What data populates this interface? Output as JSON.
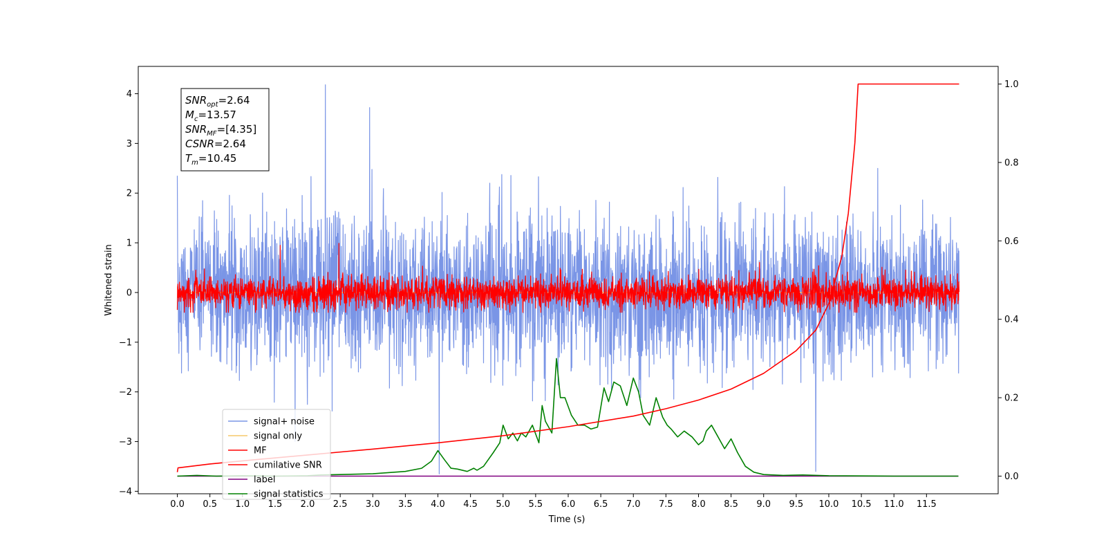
{
  "chart_data": {
    "type": "line",
    "xlabel": "Time (s)",
    "ylabel": "Whitened strain",
    "ylabel_right": "",
    "xlim": [
      -0.6,
      12.6
    ],
    "ylim": [
      -4.05,
      4.55
    ],
    "ylim_right": [
      -0.045,
      1.045
    ],
    "xticks": [
      0.0,
      0.5,
      1.0,
      1.5,
      2.0,
      2.5,
      3.0,
      3.5,
      4.0,
      4.5,
      5.0,
      5.5,
      6.0,
      6.5,
      7.0,
      7.5,
      8.0,
      8.5,
      9.0,
      9.5,
      10.0,
      10.5,
      11.0,
      11.5
    ],
    "xtick_labels": [
      "0.0",
      "0.5",
      "1.0",
      "1.5",
      "2.0",
      "2.5",
      "3.0",
      "3.5",
      "4.0",
      "4.5",
      "5.0",
      "5.5",
      "6.0",
      "6.5",
      "7.0",
      "7.5",
      "8.0",
      "8.5",
      "9.0",
      "9.5",
      "10.0",
      "10.5",
      "11.0",
      "11.5"
    ],
    "yticks": [
      -4,
      -3,
      -2,
      -1,
      0,
      1,
      2,
      3,
      4
    ],
    "ytick_labels": [
      "−4",
      "−3",
      "−2",
      "−1",
      "0",
      "1",
      "2",
      "3",
      "4"
    ],
    "yticks_right": [
      0.0,
      0.2,
      0.4,
      0.6,
      0.8,
      1.0
    ],
    "ytick_labels_right": [
      "0.0",
      "0.2",
      "0.4",
      "0.6",
      "0.8",
      "1.0"
    ],
    "grid": false,
    "legend_position": "bottom-left",
    "annotation": [
      {
        "main": "SNR",
        "sub": "opt",
        "rest": "=2.64"
      },
      {
        "main": "M",
        "sub": "c",
        "rest": "=13.57"
      },
      {
        "main": "SNR",
        "sub": "MF",
        "rest": "=[4.35]"
      },
      {
        "main": "CSNR",
        "sub": "",
        "rest": "=2.64"
      },
      {
        "main": "T",
        "sub": "m",
        "rest": "=10.45"
      }
    ],
    "series": [
      {
        "name": "signal+ noise",
        "color": "#7a95e6",
        "axis": "left",
        "style": "noise",
        "x_range": [
          0.0,
          12.0
        ],
        "amplitude_sigma": 0.75,
        "y_range_observed": [
          -3.65,
          4.18
        ],
        "notable_points": [
          [
            2.27,
            4.18
          ],
          [
            2.95,
            3.72
          ],
          [
            4.02,
            -3.65
          ],
          [
            9.8,
            -3.6
          ],
          [
            0.0,
            2.35
          ]
        ]
      },
      {
        "name": "signal only",
        "color": "#f5c96a",
        "axis": "left",
        "style": "flat",
        "x": [
          0.0,
          12.0
        ],
        "y": [
          0.0,
          0.0
        ]
      },
      {
        "name": "MF",
        "color": "#ff0000",
        "axis": "left",
        "style": "noise",
        "x_range": [
          0.0,
          12.0
        ],
        "amplitude_sigma": 0.16,
        "y_range_observed": [
          -0.4,
          0.97
        ],
        "notable_points": [
          [
            1.58,
            0.95
          ],
          [
            2.48,
            0.99
          ],
          [
            0.0,
            -0.35
          ]
        ]
      },
      {
        "name": "cumilative SNR",
        "color": "#ff0000",
        "axis": "right",
        "style": "line",
        "x": [
          0.0,
          0.01,
          0.5,
          1.0,
          2.0,
          3.0,
          4.0,
          5.0,
          6.0,
          7.0,
          7.5,
          8.0,
          8.5,
          9.0,
          9.5,
          9.8,
          10.0,
          10.2,
          10.3,
          10.4,
          10.45,
          12.0
        ],
        "y": [
          0.01,
          0.021,
          0.031,
          0.039,
          0.054,
          0.069,
          0.085,
          0.103,
          0.126,
          0.153,
          0.172,
          0.194,
          0.222,
          0.262,
          0.32,
          0.372,
          0.44,
          0.56,
          0.67,
          0.85,
          1.0,
          1.0
        ]
      },
      {
        "name": "label",
        "color": "#800080",
        "axis": "right",
        "style": "line",
        "x": [
          0.0,
          11.99
        ],
        "y": [
          0.0,
          0.0
        ]
      },
      {
        "name": "signal statistics",
        "color": "#008000",
        "axis": "right",
        "style": "line",
        "x": [
          0.0,
          0.3,
          0.6,
          1.0,
          1.5,
          2.0,
          2.2,
          2.5,
          3.0,
          3.5,
          3.75,
          3.9,
          4.0,
          4.1,
          4.2,
          4.3,
          4.45,
          4.55,
          4.6,
          4.7,
          4.85,
          4.95,
          5.0,
          5.08,
          5.15,
          5.22,
          5.28,
          5.35,
          5.45,
          5.55,
          5.6,
          5.65,
          5.75,
          5.82,
          5.88,
          5.95,
          6.05,
          6.15,
          6.25,
          6.35,
          6.45,
          6.55,
          6.62,
          6.7,
          6.8,
          6.9,
          7.0,
          7.08,
          7.15,
          7.25,
          7.35,
          7.45,
          7.52,
          7.58,
          7.68,
          7.78,
          7.9,
          8.0,
          8.07,
          8.12,
          8.2,
          8.3,
          8.4,
          8.5,
          8.6,
          8.72,
          8.85,
          9.0,
          9.3,
          9.6,
          10.0,
          11.0,
          11.99
        ],
        "y": [
          0.0,
          0.002,
          0.0,
          0.001,
          0.0,
          0.001,
          0.003,
          0.004,
          0.006,
          0.012,
          0.02,
          0.038,
          0.065,
          0.042,
          0.02,
          0.018,
          0.012,
          0.02,
          0.015,
          0.025,
          0.06,
          0.085,
          0.13,
          0.095,
          0.11,
          0.09,
          0.11,
          0.1,
          0.13,
          0.085,
          0.18,
          0.14,
          0.11,
          0.3,
          0.2,
          0.2,
          0.155,
          0.13,
          0.13,
          0.12,
          0.125,
          0.225,
          0.19,
          0.24,
          0.23,
          0.18,
          0.25,
          0.215,
          0.155,
          0.13,
          0.2,
          0.15,
          0.13,
          0.12,
          0.1,
          0.115,
          0.1,
          0.08,
          0.09,
          0.115,
          0.13,
          0.1,
          0.07,
          0.095,
          0.06,
          0.025,
          0.01,
          0.004,
          0.002,
          0.003,
          0.001,
          0.0,
          0.0
        ]
      }
    ]
  }
}
